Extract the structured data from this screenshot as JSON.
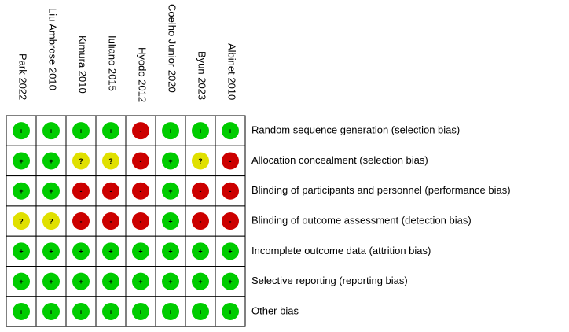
{
  "studies": [
    "Park 2022",
    "Liu Ambrose 2010",
    "Kimura 2010",
    "Iuliano 2015",
    "Hyodo 2012",
    "Coelho Junior 2020",
    "Byun 2023",
    "Albinet 2010"
  ],
  "domains": [
    "Random sequence generation (selection bias)",
    "Allocation concealment (selection bias)",
    "Blinding of participants and personnel (performance bias)",
    "Blinding of outcome assessment (detection bias)",
    "Incomplete outcome data (attrition bias)",
    "Selective reporting (reporting bias)",
    "Other bias"
  ],
  "judgments": [
    [
      "+",
      "+",
      "+",
      "+",
      "-",
      "+",
      "+",
      "+"
    ],
    [
      "+",
      "+",
      "?",
      "?",
      "-",
      "+",
      "?",
      "-"
    ],
    [
      "+",
      "+",
      "-",
      "-",
      "-",
      "+",
      "-",
      "-"
    ],
    [
      "?",
      "?",
      "-",
      "-",
      "-",
      "+",
      "-",
      "-"
    ],
    [
      "+",
      "+",
      "+",
      "+",
      "+",
      "+",
      "+",
      "+"
    ],
    [
      "+",
      "+",
      "+",
      "+",
      "+",
      "+",
      "+",
      "+"
    ],
    [
      "+",
      "+",
      "+",
      "+",
      "+",
      "+",
      "+",
      "+"
    ]
  ],
  "colors": {
    "+": "#00cc00",
    "?": "#e0e000",
    "-": "#cc0000"
  }
}
